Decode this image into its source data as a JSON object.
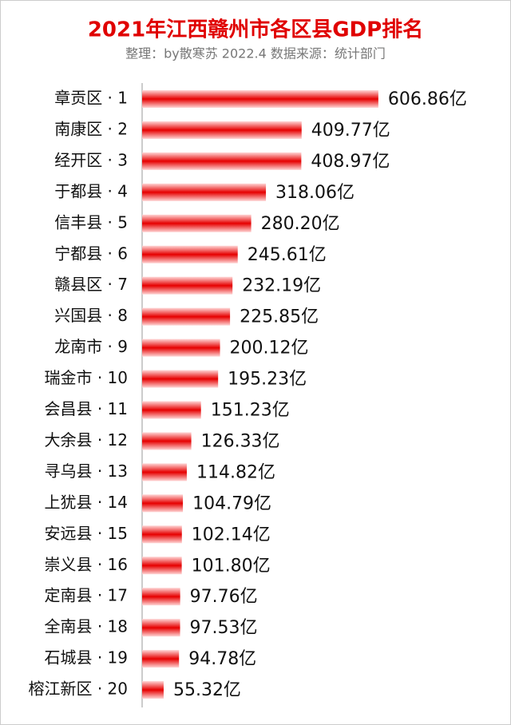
{
  "chart_data": {
    "type": "bar",
    "orientation": "horizontal",
    "title": "2021年江西赣州市各区县GDP排名",
    "subtitle": "整理：by散寒苏  2022.4  数据来源：统计部门",
    "categories": [
      "章贡区 · 1",
      "南康区 · 2",
      "经开区 · 3",
      "于都县 · 4",
      "信丰县 · 5",
      "宁都县 · 6",
      "赣县区 · 7",
      "兴国县 · 8",
      "龙南市 · 9",
      "瑞金市 · 10",
      "会昌县 · 11",
      "大余县 · 12",
      "寻乌县 · 13",
      "上犹县 · 14",
      "安远县 · 15",
      "崇义县 · 16",
      "定南县 · 17",
      "全南县 · 18",
      "石城县 · 19",
      "榕江新区 · 20"
    ],
    "values": [
      606.86,
      409.77,
      408.97,
      318.06,
      280.2,
      245.61,
      232.19,
      225.85,
      200.12,
      195.23,
      151.23,
      126.33,
      114.82,
      104.79,
      102.14,
      101.8,
      97.76,
      97.53,
      94.78,
      55.32
    ],
    "value_labels": [
      "606.86亿",
      "409.77亿",
      "408.97亿",
      "318.06亿",
      "280.20亿",
      "245.61亿",
      "232.19亿",
      "225.85亿",
      "200.12亿",
      "195.23亿",
      "151.23亿",
      "126.33亿",
      "114.82亿",
      "104.79亿",
      "102.14亿",
      "101.80亿",
      "97.76亿",
      "97.53亿",
      "94.78亿",
      "55.32亿"
    ],
    "color": "#e60000",
    "xlim": [
      0,
      800
    ]
  }
}
